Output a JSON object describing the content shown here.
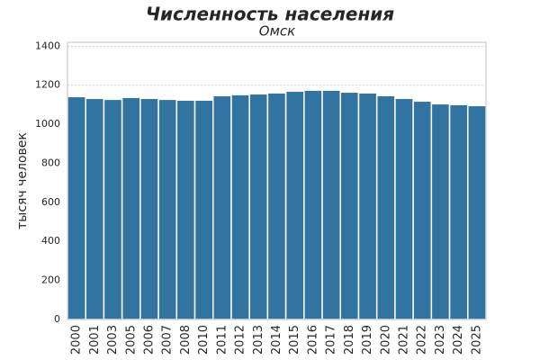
{
  "chart_data": {
    "type": "bar",
    "title": "Численность населения",
    "subtitle": "Омск",
    "ylabel": "тысяч человек",
    "categories": [
      "2000",
      "2001",
      "2003",
      "2005",
      "2006",
      "2007",
      "2008",
      "2010",
      "2011",
      "2012",
      "2013",
      "2014",
      "2015",
      "2016",
      "2017",
      "2018",
      "2019",
      "2020",
      "2021",
      "2022",
      "2023",
      "2024",
      "2025"
    ],
    "values": [
      1142,
      1133,
      1128,
      1138,
      1133,
      1128,
      1124,
      1124,
      1147,
      1152,
      1156,
      1161,
      1170,
      1175,
      1175,
      1165,
      1161,
      1147,
      1133,
      1119,
      1105,
      1101,
      1096
    ],
    "color": "#3274a1",
    "ylim": [
      0,
      1420
    ],
    "yticks": [
      0,
      200,
      400,
      600,
      800,
      1000,
      1200,
      1400
    ],
    "grid": true
  }
}
